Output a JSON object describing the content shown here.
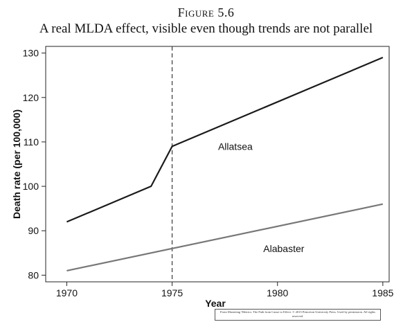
{
  "figure": {
    "label": "Figure 5.6",
    "title": "A real MLDA effect, visible even though trends are not parallel",
    "credit": "From Mastering 'Metrics: The Path from Cause to Effect. © 2015 Princeton University Press. Used by permission. All rights reserved."
  },
  "chart_data": {
    "type": "line",
    "xlabel": "Year",
    "ylabel": "Death rate (per 100,000)",
    "xlim": [
      1969,
      1985.3
    ],
    "ylim": [
      78.5,
      131.5
    ],
    "xticks": [
      1970,
      1975,
      1980,
      1985
    ],
    "yticks": [
      80,
      90,
      100,
      110,
      120,
      130
    ],
    "grid": false,
    "legend": "none",
    "vline": {
      "x": 1975,
      "style": "dashed"
    },
    "series": [
      {
        "name": "Allatsea",
        "color": "#1a1a1a",
        "x": [
          1970,
          1974,
          1975,
          1985
        ],
        "y": [
          92,
          100,
          109,
          129
        ],
        "label_at": [
          1978,
          109
        ]
      },
      {
        "name": "Alabaster",
        "color": "#777777",
        "x": [
          1970,
          1985
        ],
        "y": [
          81,
          96
        ],
        "label_at": [
          1980.3,
          86
        ]
      }
    ]
  }
}
